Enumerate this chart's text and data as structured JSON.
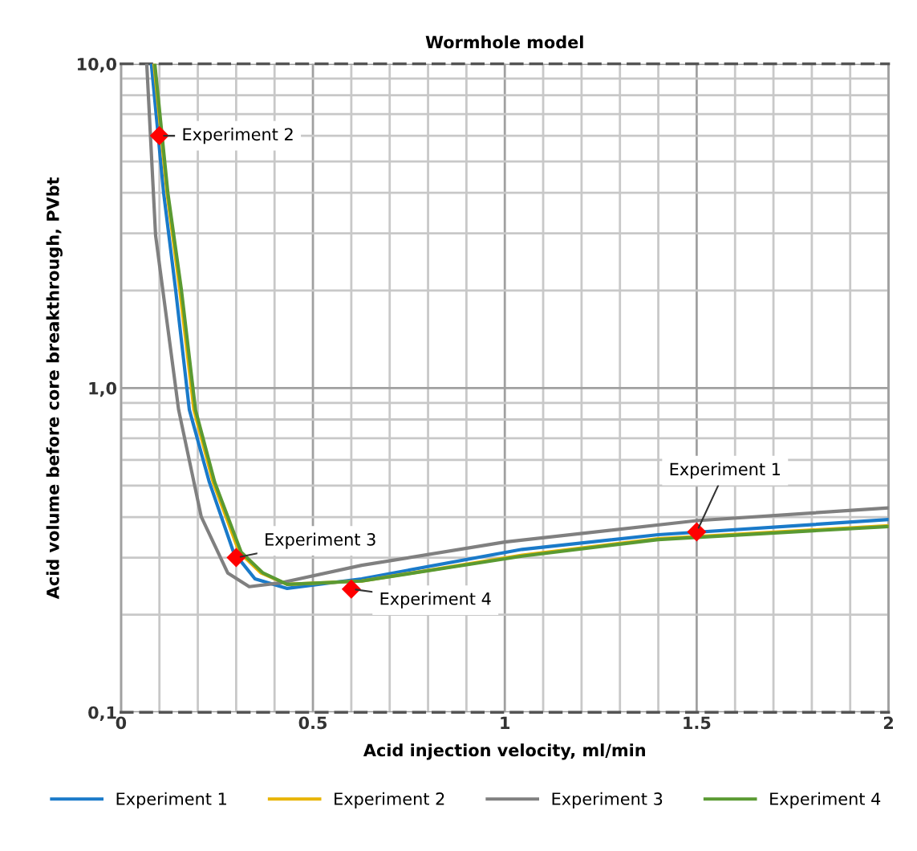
{
  "chart_data": {
    "type": "line",
    "title": "Wormhole model",
    "xlabel": "Acid injection velocity, ml/min",
    "ylabel": "Acid volume before core breakthrough, PVbt",
    "log": "y",
    "xlim": [
      0,
      2
    ],
    "ylim": [
      0.1,
      10
    ],
    "xticks": [
      0,
      0.5,
      1,
      1.5,
      2
    ],
    "yticks": [
      {
        "value": 0.1,
        "label": "0,1"
      },
      {
        "value": 1,
        "label": "1,0"
      },
      {
        "value": 10,
        "label": "10,0"
      }
    ],
    "grid": true,
    "legend": "bottom",
    "line_style": "solid",
    "marker": "none",
    "series": [
      {
        "name": "Experiment 1",
        "color": "#1a7ac9",
        "x": [
          0.079,
          0.111,
          0.142,
          0.178,
          0.23,
          0.293,
          0.349,
          0.433,
          0.627,
          1.045,
          1.4,
          2.0
        ],
        "values": [
          10,
          4.0,
          2.02,
          0.857,
          0.513,
          0.312,
          0.258,
          0.241,
          0.258,
          0.318,
          0.353,
          0.393
        ]
      },
      {
        "name": "Experiment 2",
        "color": "#e8b400",
        "x": [
          0.086,
          0.12,
          0.153,
          0.19,
          0.24,
          0.308,
          0.365,
          0.433,
          0.627,
          1.045,
          1.4,
          2.0
        ],
        "values": [
          10,
          4.0,
          2.02,
          0.857,
          0.513,
          0.312,
          0.269,
          0.248,
          0.254,
          0.305,
          0.343,
          0.376
        ]
      },
      {
        "name": "Experiment 3",
        "color": "#808080",
        "x": [
          0.067,
          0.09,
          0.15,
          0.209,
          0.278,
          0.334,
          0.418,
          0.627,
          1.0,
          1.5,
          2.0
        ],
        "values": [
          10,
          2.96,
          0.857,
          0.401,
          0.269,
          0.244,
          0.251,
          0.284,
          0.335,
          0.39,
          0.427
        ]
      },
      {
        "name": "Experiment 4",
        "color": "#5a9a32",
        "x": [
          0.088,
          0.122,
          0.157,
          0.194,
          0.244,
          0.313,
          0.37,
          0.433,
          0.627,
          1.045,
          1.4,
          2.0
        ],
        "values": [
          10,
          4.0,
          2.02,
          0.857,
          0.513,
          0.312,
          0.269,
          0.248,
          0.254,
          0.303,
          0.341,
          0.374
        ]
      },
      {
        "type": "scatter",
        "marker": "diamond",
        "color": "#ff0000",
        "x": [
          0.1,
          0.3,
          0.6,
          1.5
        ],
        "values": [
          6.0,
          0.3,
          0.24,
          0.36
        ]
      }
    ],
    "annotations": [
      {
        "text": "Experiment 2",
        "x": 0.1,
        "y": 6.0
      },
      {
        "text": "Experiment 3",
        "x": 0.3,
        "y": 0.3
      },
      {
        "text": "Experiment 4",
        "x": 0.6,
        "y": 0.24
      },
      {
        "text": "Experiment 1",
        "x": 1.5,
        "y": 0.36
      }
    ]
  }
}
